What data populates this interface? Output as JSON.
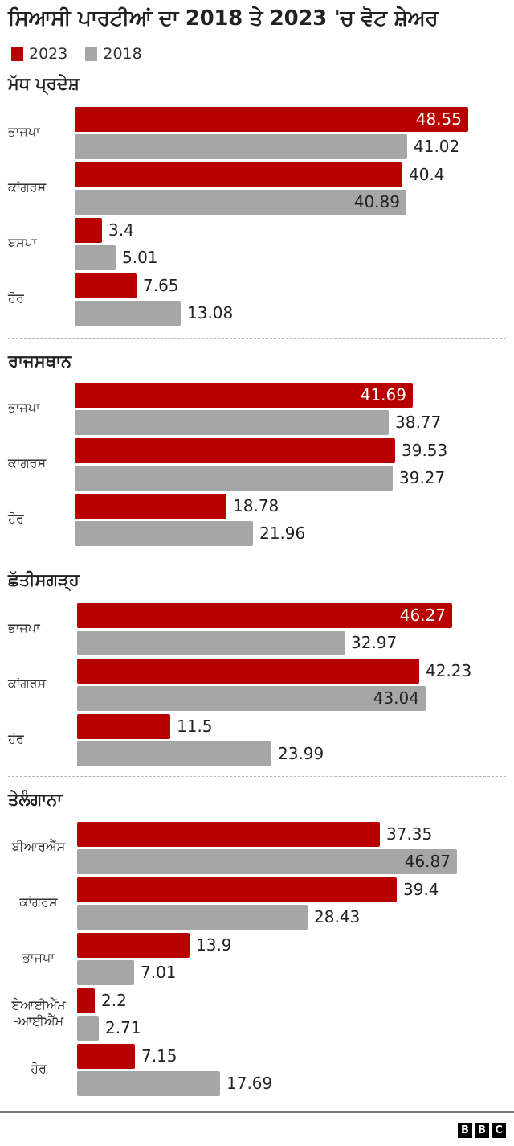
{
  "title": "ਸਿਆਸੀ ਪਾਰਟੀਆਂ ਦਾ 2018 ਤੇ 2023 'ਚ ਵੋਟ ਸ਼ੇਅਰ",
  "legend": [
    {
      "label": "2023",
      "color": "#b80000"
    },
    {
      "label": "2018",
      "color": "#a6a6a6"
    }
  ],
  "colors": {
    "y2023": "#b80000",
    "y2018": "#a6a6a6",
    "divider": "#b5b5b5"
  },
  "footer": {
    "logo_letters": [
      "B",
      "B",
      "C"
    ]
  },
  "chart_data": {
    "type": "bar",
    "orientation": "horizontal",
    "title": "ਸਿਆਸੀ ਪਾਰਟੀਆਂ ਦਾ 2018 ਤੇ 2023 'ਚ ਵੋਟ ਸ਼ੇਅਰ",
    "legend_position": "top-left",
    "series_names": [
      "2023",
      "2018"
    ],
    "unit": "%",
    "grid": false,
    "panels": [
      {
        "state": "ਮੱਧ ਪ੍ਰਦੇਸ਼",
        "categories": [
          "ਭਾਜਪਾ",
          "ਕਾਂਗਰਸ",
          "ਬਸਪਾ",
          "ਹੋਰ"
        ],
        "series": [
          {
            "name": "2023",
            "values": [
              48.55,
              40.4,
              3.4,
              7.65
            ]
          },
          {
            "name": "2018",
            "values": [
              41.02,
              40.89,
              5.01,
              13.08
            ]
          }
        ]
      },
      {
        "state": "ਰਾਜਸਥਾਨ",
        "categories": [
          "ਭਾਜਪਾ",
          "ਕਾਂਗਰਸ",
          "ਹੋਰ"
        ],
        "series": [
          {
            "name": "2023",
            "values": [
              41.69,
              39.53,
              18.78
            ]
          },
          {
            "name": "2018",
            "values": [
              38.77,
              39.27,
              21.96
            ]
          }
        ]
      },
      {
        "state": "ਛੱਤੀਸਗੜ੍ਹ",
        "categories": [
          "ਭਾਜਪਾ",
          "ਕਾਂਗਰਸ",
          "ਹੋਰ"
        ],
        "series": [
          {
            "name": "2023",
            "values": [
              46.27,
              42.23,
              11.5
            ]
          },
          {
            "name": "2018",
            "values": [
              32.97,
              43.04,
              23.99
            ]
          }
        ]
      },
      {
        "state": "ਤੇਲੰਗਾਨਾ",
        "categories": [
          "ਬੀਆਰਐੱਸ",
          "ਕਾਂਗਰਸ",
          "ਭਾਜਪਾ",
          "ਏਆਈਐੱਮ\n-ਆਈਐੱਮ",
          "ਹੋਰ"
        ],
        "series": [
          {
            "name": "2023",
            "values": [
              37.35,
              39.4,
              13.9,
              2.2,
              7.15
            ]
          },
          {
            "name": "2018",
            "values": [
              46.87,
              28.43,
              7.01,
              2.71,
              17.69
            ]
          }
        ]
      }
    ]
  }
}
